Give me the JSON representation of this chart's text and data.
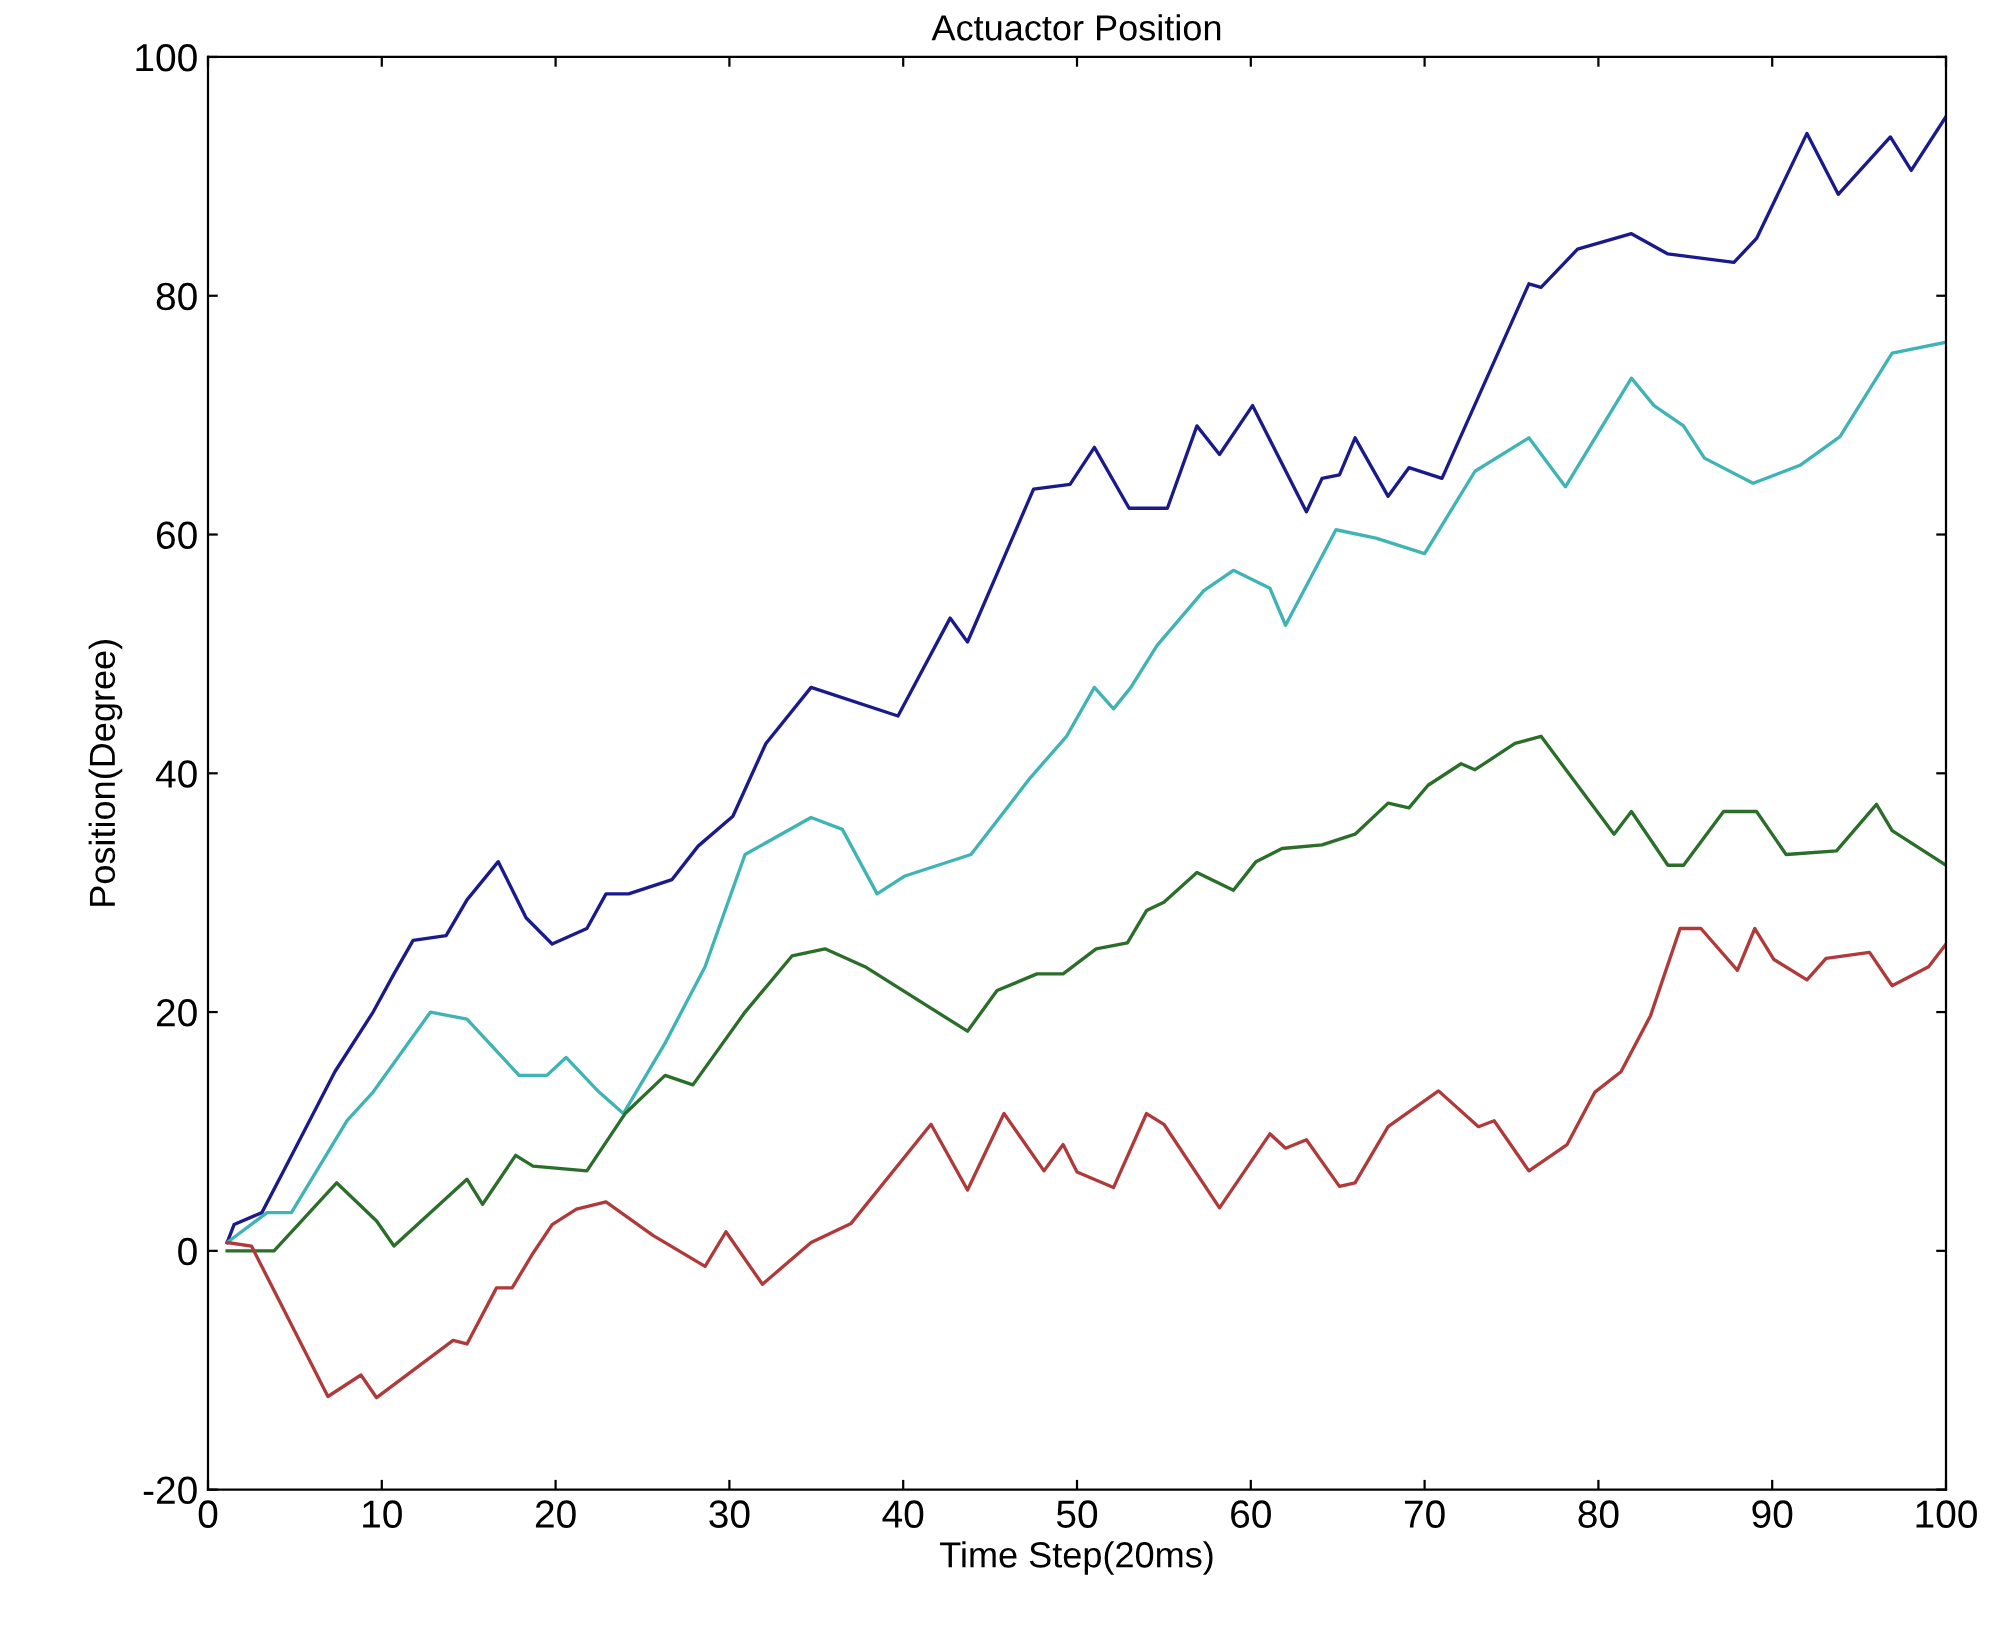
{
  "chart_data": {
    "type": "line",
    "title": "Actuactor Position",
    "xlabel": "Time Step(20ms)",
    "ylabel": "Position(Degree)",
    "xlim": [
      0,
      100
    ],
    "ylim": [
      -20,
      100
    ],
    "xticks": [
      0,
      10,
      20,
      30,
      40,
      50,
      60,
      70,
      80,
      90,
      100
    ],
    "yticks": [
      -20,
      0,
      20,
      40,
      60,
      80,
      100
    ],
    "grid": false,
    "marker": "none",
    "line_style": "solid",
    "series": [
      {
        "color": "#1a1a8c",
        "x": [
          1.1,
          1.5,
          3.1,
          4.6,
          7.3,
          9.5,
          10.7,
          11.8,
          13.7,
          14.9,
          16.7,
          18.3,
          19.8,
          21.8,
          22.9,
          24.2,
          26.7,
          28.2,
          30.2,
          32.1,
          34.7,
          39.7,
          42.7,
          43.7,
          47.5,
          49.6,
          51,
          53,
          55.2,
          56.9,
          58.2,
          60.1,
          63.2,
          64.1,
          65.1,
          66,
          67.9,
          69.1,
          71,
          76,
          76.7,
          78.8,
          81.9,
          84,
          87.8,
          89.1,
          92,
          93.8,
          96.8,
          98,
          100
        ],
        "values": [
          0.7,
          2.2,
          3.2,
          7.4,
          15,
          20,
          23.2,
          26,
          26.4,
          29.4,
          32.6,
          27.9,
          25.7,
          27,
          29.9,
          29.9,
          31.1,
          33.9,
          36.4,
          42.5,
          47.2,
          44.8,
          53,
          51,
          63.8,
          64.2,
          67.3,
          62.2,
          62.2,
          69.1,
          66.7,
          70.8,
          61.9,
          64.7,
          65,
          68.1,
          63.2,
          65.6,
          64.7,
          81,
          80.7,
          83.9,
          85.2,
          83.5,
          82.8,
          84.8,
          93.6,
          88.5,
          93.3,
          90.5,
          95
        ]
      },
      {
        "color": "#40b4b4",
        "x": [
          1.1,
          3.4,
          4.8,
          8,
          9.5,
          12.8,
          14.9,
          17.9,
          19.5,
          20.6,
          22.5,
          23.9,
          26.3,
          28.6,
          30.9,
          34.7,
          36.5,
          38.5,
          40.1,
          43.9,
          47.3,
          49.4,
          51,
          52.1,
          53.1,
          54.6,
          57.3,
          59,
          61.1,
          62,
          64.9,
          67.2,
          70,
          72.9,
          76,
          78.1,
          81.9,
          83.2,
          84.9,
          86.1,
          88.9,
          91.6,
          93.9,
          96.9,
          100
        ],
        "values": [
          0.7,
          3.2,
          3.2,
          10.9,
          13.3,
          20,
          19.4,
          14.7,
          14.7,
          16.2,
          13.3,
          11.5,
          17.4,
          23.8,
          33.2,
          36.3,
          35.3,
          29.9,
          31.4,
          33.2,
          39.6,
          43.1,
          47.2,
          45.4,
          47.2,
          50.7,
          55.3,
          57,
          55.5,
          52.4,
          60.4,
          59.7,
          58.4,
          65.3,
          68.1,
          64,
          73.1,
          70.8,
          69.1,
          66.4,
          64.3,
          65.8,
          68.2,
          75.2,
          76.1
        ]
      },
      {
        "color": "#2a6e2a",
        "x": [
          1.1,
          3.8,
          7.4,
          9.7,
          10.7,
          14.9,
          15.8,
          17.7,
          18.7,
          21.8,
          24,
          26.3,
          27.9,
          30.9,
          33.6,
          35.5,
          37.8,
          43.7,
          45.4,
          47.7,
          49.2,
          51.1,
          52.9,
          54,
          55,
          56.9,
          59,
          60.3,
          61.8,
          64.1,
          66,
          67.9,
          69.1,
          70.2,
          72.1,
          72.9,
          75.2,
          76.7,
          80.9,
          81.9,
          84,
          84.9,
          87.2,
          89.1,
          90.8,
          93.7,
          96,
          96.9,
          100
        ],
        "values": [
          0,
          0,
          5.7,
          2.5,
          0.4,
          6,
          3.9,
          8,
          7.1,
          6.7,
          11.5,
          14.7,
          13.9,
          20,
          24.7,
          25.3,
          23.8,
          18.4,
          21.8,
          23.2,
          23.2,
          25.3,
          25.8,
          28.5,
          29.2,
          31.7,
          30.2,
          32.6,
          33.7,
          34,
          34.9,
          37.5,
          37.1,
          39,
          40.8,
          40.3,
          42.5,
          43.1,
          34.9,
          36.8,
          32.3,
          32.3,
          36.8,
          36.8,
          33.2,
          33.5,
          37.4,
          35.2,
          32.3
        ]
      },
      {
        "color": "#b03a3a",
        "x": [
          1.1,
          2.5,
          6.9,
          8.8,
          9.7,
          14.1,
          14.9,
          16.6,
          17.5,
          18.7,
          19.8,
          21.2,
          22.9,
          25.6,
          28.6,
          29.8,
          31.9,
          34.7,
          37,
          41.6,
          43.7,
          45.8,
          48.1,
          49.2,
          50,
          52.1,
          54,
          55,
          58.2,
          61.1,
          62,
          63.2,
          65.1,
          66,
          67.9,
          70.8,
          73.1,
          74,
          76,
          78.2,
          79.8,
          81.3,
          83,
          84.7,
          85.9,
          88,
          89,
          90.1,
          92,
          93.1,
          95.6,
          96.9,
          99,
          100
        ],
        "values": [
          0.7,
          0.4,
          -12.2,
          -10.4,
          -12.3,
          -7.5,
          -7.8,
          -3.1,
          -3.1,
          -0.2,
          2.2,
          3.5,
          4.1,
          1.3,
          -1.3,
          1.6,
          -2.8,
          0.7,
          2.3,
          10.6,
          5.1,
          11.5,
          6.7,
          8.9,
          6.6,
          5.3,
          11.5,
          10.6,
          3.6,
          9.8,
          8.6,
          9.3,
          5.4,
          5.7,
          10.4,
          13.4,
          10.4,
          10.9,
          6.7,
          8.9,
          13.3,
          15,
          19.7,
          27,
          27,
          23.5,
          27,
          24.4,
          22.7,
          24.5,
          25,
          22.2,
          23.8,
          25.7
        ]
      }
    ]
  }
}
